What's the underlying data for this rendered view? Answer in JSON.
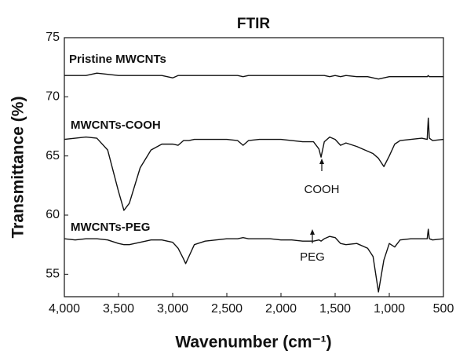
{
  "chart_data": {
    "type": "line",
    "title": "FTIR",
    "xlabel": "Wavenumber (cm⁻¹)",
    "ylabel": "Transmittance (%)",
    "x": [
      4000,
      3900,
      3800,
      3700,
      3600,
      3500,
      3450,
      3400,
      3300,
      3200,
      3100,
      3000,
      2950,
      2900,
      2880,
      2850,
      2800,
      2700,
      2600,
      2500,
      2400,
      2350,
      2300,
      2200,
      2100,
      2000,
      1900,
      1800,
      1700,
      1650,
      1630,
      1600,
      1550,
      1500,
      1450,
      1400,
      1300,
      1200,
      1150,
      1100,
      1050,
      1000,
      950,
      900,
      800,
      700,
      650,
      640,
      630,
      600,
      500
    ],
    "series": [
      {
        "name": "Pristine MWCNTs",
        "color": "#111111",
        "values": [
          71.8,
          71.8,
          71.8,
          72.0,
          71.9,
          71.8,
          71.8,
          71.8,
          71.8,
          71.8,
          71.8,
          71.6,
          71.8,
          71.8,
          71.8,
          71.8,
          71.8,
          71.8,
          71.8,
          71.8,
          71.8,
          71.7,
          71.8,
          71.8,
          71.8,
          71.8,
          71.8,
          71.8,
          71.8,
          71.8,
          71.8,
          71.8,
          71.7,
          71.8,
          71.7,
          71.8,
          71.7,
          71.7,
          71.6,
          71.5,
          71.6,
          71.7,
          71.7,
          71.7,
          71.7,
          71.7,
          71.7,
          71.8,
          71.7,
          71.7,
          71.7
        ]
      },
      {
        "name": "MWCNTs-COOH",
        "color": "#111111",
        "values": [
          66.4,
          66.5,
          66.6,
          66.5,
          65.5,
          62.0,
          60.4,
          61.0,
          64.0,
          65.5,
          66.0,
          66.0,
          65.9,
          66.3,
          66.3,
          66.3,
          66.4,
          66.4,
          66.4,
          66.4,
          66.3,
          65.9,
          66.3,
          66.4,
          66.4,
          66.4,
          66.3,
          66.2,
          66.2,
          65.6,
          64.9,
          66.2,
          66.6,
          66.4,
          65.9,
          66.1,
          65.8,
          65.4,
          65.2,
          64.8,
          64.1,
          65.0,
          66.0,
          66.3,
          66.4,
          66.5,
          66.4,
          68.2,
          66.5,
          66.3,
          66.4
        ]
      },
      {
        "name": "MWCNTs-PEG",
        "color": "#111111",
        "values": [
          58.0,
          57.9,
          58.0,
          58.0,
          57.9,
          57.6,
          57.5,
          57.5,
          57.7,
          57.9,
          57.9,
          57.7,
          57.2,
          56.3,
          55.9,
          56.5,
          57.5,
          57.8,
          57.9,
          58.0,
          58.0,
          58.1,
          58.0,
          58.0,
          58.0,
          57.9,
          57.9,
          57.8,
          57.8,
          57.9,
          57.8,
          58.0,
          58.2,
          58.1,
          57.6,
          57.5,
          57.6,
          57.2,
          56.5,
          53.5,
          56.2,
          57.6,
          57.3,
          57.9,
          58.0,
          58.0,
          58.0,
          58.8,
          58.0,
          57.9,
          58.0
        ]
      }
    ],
    "annotations": [
      "COOH",
      "PEG"
    ],
    "xlim": [
      4000,
      500
    ],
    "xticks": [
      {
        "value": 4000,
        "label": "4,000"
      },
      {
        "value": 3500,
        "label": "3,500"
      },
      {
        "value": 3000,
        "label": "3,000"
      },
      {
        "value": 2500,
        "label": "2,500"
      },
      {
        "value": 2000,
        "label": "2,000"
      },
      {
        "value": 1500,
        "label": "1,500"
      },
      {
        "value": 1000,
        "label": "1,000"
      },
      500
    ],
    "ylim": [
      53.1,
      75
    ],
    "yticks": [
      55,
      60,
      65,
      70,
      75
    ]
  }
}
